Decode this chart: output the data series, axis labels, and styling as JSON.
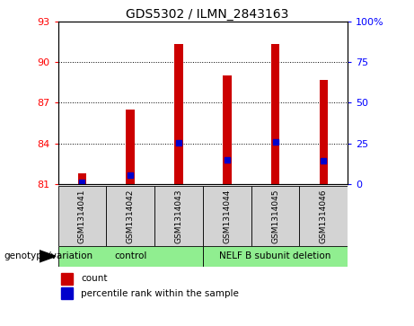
{
  "title": "GDS5302 / ILMN_2843163",
  "samples": [
    "GSM1314041",
    "GSM1314042",
    "GSM1314043",
    "GSM1314044",
    "GSM1314045",
    "GSM1314046"
  ],
  "count_values": [
    81.8,
    86.5,
    91.35,
    89.0,
    91.3,
    88.7
  ],
  "percentile_values": [
    1.0,
    5.5,
    25.5,
    15.0,
    25.8,
    14.5
  ],
  "ylim_left": [
    81,
    93
  ],
  "ylim_right": [
    0,
    100
  ],
  "yticks_left": [
    81,
    84,
    87,
    90,
    93
  ],
  "yticks_right": [
    0,
    25,
    50,
    75,
    100
  ],
  "bar_color": "#cc0000",
  "marker_color": "#0000cc",
  "bar_width": 0.18,
  "grid_lines": [
    84,
    87,
    90
  ],
  "cell_bg": "#d3d3d3",
  "group_color": "#90ee90",
  "legend_count_label": "count",
  "legend_pct_label": "percentile rank within the sample",
  "genotype_label": "genotype/variation",
  "group1_label": "control",
  "group2_label": "NELF B subunit deletion"
}
